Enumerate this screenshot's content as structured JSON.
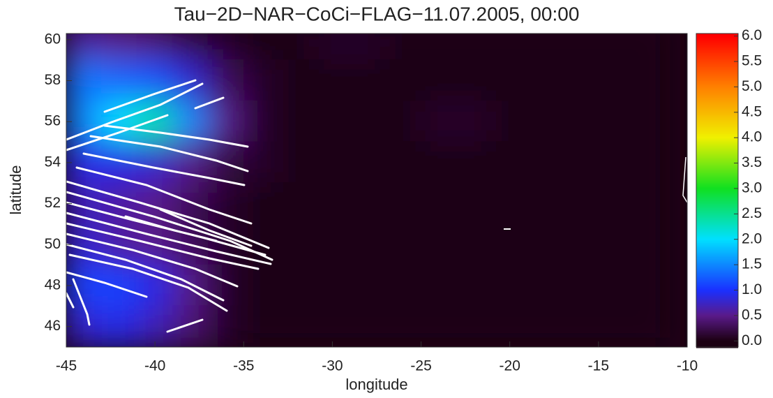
{
  "chart_data": {
    "type": "heatmap",
    "title": "Tau−2D−NAR−CoCi−FLAG−11.07.2005, 00:00",
    "xlabel": "longitude",
    "ylabel": "latitude",
    "x": [
      -44,
      -42,
      -40,
      -38,
      -36,
      -34,
      -32,
      -30,
      -28,
      -26,
      -24,
      -22,
      -20,
      -18,
      -16,
      -14,
      -12
    ],
    "y": [
      60,
      58,
      56,
      54,
      52,
      50,
      48,
      46
    ],
    "z": [
      [
        0.6,
        0.5,
        0.4,
        0.2,
        0.1,
        0,
        0,
        0.1,
        0.1,
        0,
        0,
        0,
        0,
        0,
        0,
        0,
        0
      ],
      [
        1.4,
        1.3,
        1.2,
        0.8,
        0.3,
        0.1,
        0,
        0,
        0,
        0,
        0,
        0,
        0,
        0,
        0,
        0,
        0
      ],
      [
        1.5,
        2.0,
        2.4,
        1.5,
        0.5,
        0.1,
        0,
        0,
        0,
        0,
        0.1,
        0.1,
        0,
        0,
        0,
        0,
        0
      ],
      [
        0.9,
        0.9,
        0.8,
        0.5,
        0.2,
        0.1,
        0,
        0,
        0,
        0,
        0,
        0,
        0,
        0,
        0,
        0,
        0
      ],
      [
        0.7,
        0.6,
        0.5,
        0.3,
        0.1,
        0,
        0,
        0,
        0,
        0,
        0,
        0,
        0,
        0,
        0,
        0,
        0
      ],
      [
        0.8,
        0.6,
        0.5,
        0.3,
        0.1,
        0,
        0,
        0,
        0,
        0,
        0,
        0,
        0,
        0,
        0,
        0,
        0
      ],
      [
        1.1,
        1.1,
        0.9,
        0.5,
        0.1,
        0,
        0,
        0,
        0,
        0,
        0,
        0,
        0,
        0,
        0,
        0,
        0
      ],
      [
        0.8,
        0.9,
        0.7,
        0.4,
        0.1,
        0,
        0,
        0,
        0,
        0,
        0,
        0,
        0,
        0,
        0,
        0,
        0
      ]
    ],
    "xlim": [
      -45,
      -10
    ],
    "xticks": [
      -45,
      -40,
      -35,
      -30,
      -25,
      -20,
      -15,
      -10
    ],
    "ylim": [
      45,
      60.3
    ],
    "yticks": [
      46,
      48,
      50,
      52,
      54,
      56,
      58,
      60
    ],
    "clim": [
      -0.12,
      6.05
    ],
    "cticks": [
      {
        "value": 0,
        "label": "0.0"
      },
      0.5,
      {
        "value": 1,
        "label": "1.0"
      },
      1.5,
      {
        "value": 2,
        "label": "2.0"
      },
      2.5,
      {
        "value": 3,
        "label": "3.0"
      },
      3.5,
      {
        "value": 4,
        "label": "4.0"
      },
      4.5,
      {
        "value": 5,
        "label": "5.0"
      },
      5.5,
      {
        "value": 6,
        "label": "6.0"
      }
    ],
    "colorscale": [
      [
        0,
        "#1c0012"
      ],
      [
        0.5,
        "#5a1a8a"
      ],
      [
        1.0,
        "#1a30ff"
      ],
      [
        2.0,
        "#00e0ff"
      ],
      [
        3.0,
        "#10e020"
      ],
      [
        4.0,
        "#f0f000"
      ],
      [
        5.0,
        "#ff8000"
      ],
      [
        6.0,
        "#ff0000"
      ]
    ]
  }
}
